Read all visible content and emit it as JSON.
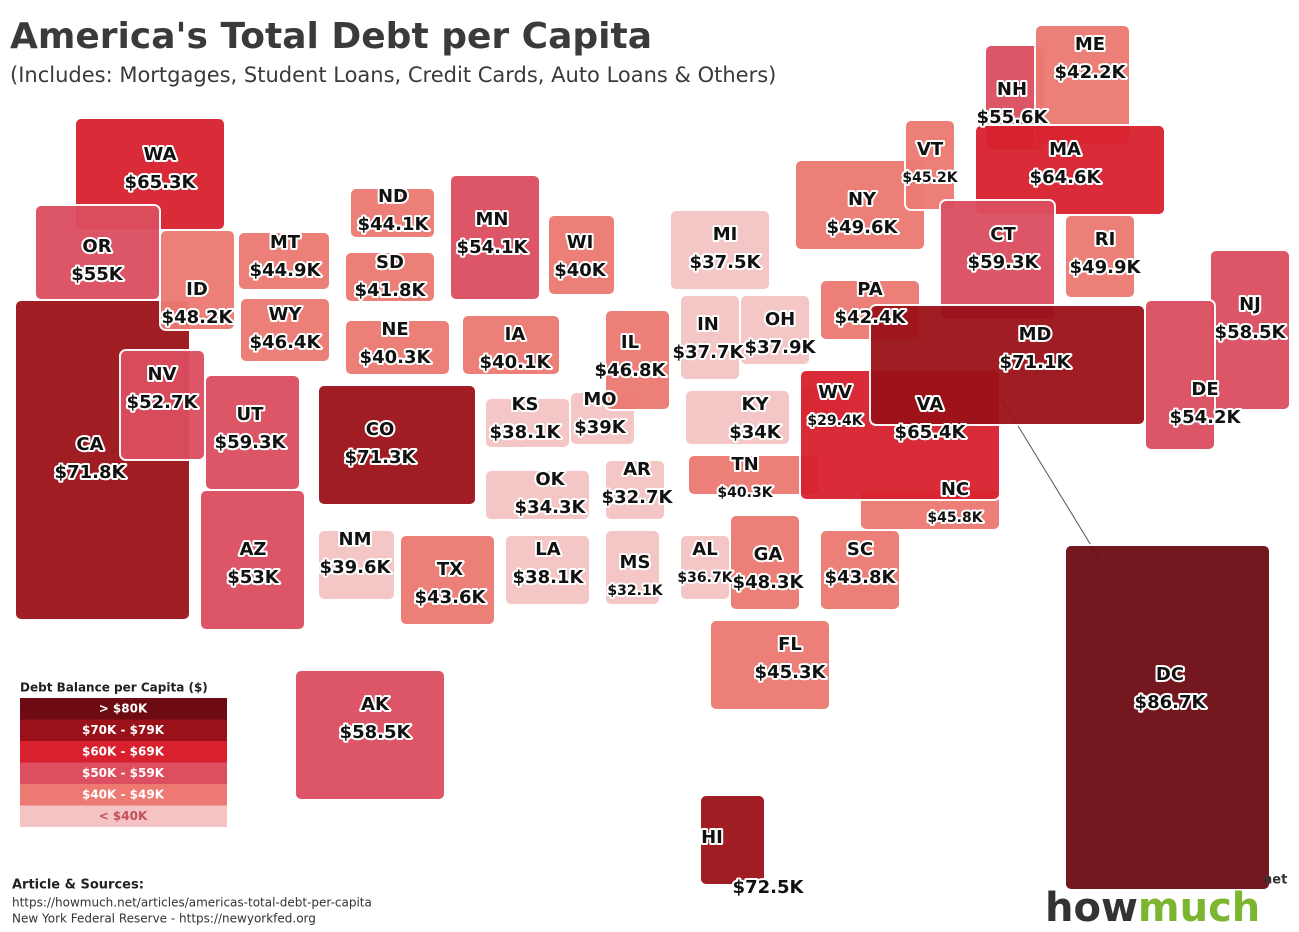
{
  "header": {
    "title": "America's Total Debt per Capita",
    "subtitle": "(Includes: Mortgages, Student Loans, Credit Cards, Auto Loans & Others)"
  },
  "states": [
    {
      "abbr": "WA",
      "label": "$65.3K",
      "color": "#d8202e"
    },
    {
      "abbr": "OR",
      "label": "$55K",
      "color": "#dc4e60"
    },
    {
      "abbr": "CA",
      "label": "$71.8K",
      "color": "#9b1119"
    },
    {
      "abbr": "ID",
      "label": "$48.2K",
      "color": "#ec7a72"
    },
    {
      "abbr": "NV",
      "label": "$52.7K",
      "color": "#dc4e60"
    },
    {
      "abbr": "UT",
      "label": "$59.3K",
      "color": "#dc4e60"
    },
    {
      "abbr": "AZ",
      "label": "$53K",
      "color": "#dc4e60"
    },
    {
      "abbr": "MT",
      "label": "$44.9K",
      "color": "#ec7a72"
    },
    {
      "abbr": "WY",
      "label": "$46.4K",
      "color": "#ec7a72"
    },
    {
      "abbr": "ND",
      "label": "$44.1K",
      "color": "#ec7a72"
    },
    {
      "abbr": "SD",
      "label": "$41.8K",
      "color": "#ec7a72"
    },
    {
      "abbr": "NE",
      "label": "$40.3K",
      "color": "#ec7a72"
    },
    {
      "abbr": "CO",
      "label": "$71.3K",
      "color": "#9b1119"
    },
    {
      "abbr": "MN",
      "label": "$54.1K",
      "color": "#dc4e60"
    },
    {
      "abbr": "WI",
      "label": "$40K",
      "color": "#ec7a72"
    },
    {
      "abbr": "IA",
      "label": "$40.1K",
      "color": "#ec7a72"
    },
    {
      "abbr": "KS",
      "label": "$38.1K",
      "color": "#f5c3c3"
    },
    {
      "abbr": "MO",
      "label": "$39K",
      "color": "#f5c3c3"
    },
    {
      "abbr": "OK",
      "label": "$34.3K",
      "color": "#f5c3c3"
    },
    {
      "abbr": "NM",
      "label": "$39.6K",
      "color": "#f5c3c3"
    },
    {
      "abbr": "TX",
      "label": "$43.6K",
      "color": "#ec7a72"
    },
    {
      "abbr": "AR",
      "label": "$32.7K",
      "color": "#f5c3c3"
    },
    {
      "abbr": "LA",
      "label": "$38.1K",
      "color": "#f5c3c3"
    },
    {
      "abbr": "MS",
      "label": "$32.1K",
      "color": "#f5c3c3"
    },
    {
      "abbr": "AL",
      "label": "$36.7K",
      "color": "#f5c3c3"
    },
    {
      "abbr": "GA",
      "label": "$48.3K",
      "color": "#ec7a72"
    },
    {
      "abbr": "FL",
      "label": "$45.3K",
      "color": "#ec7a72"
    },
    {
      "abbr": "SC",
      "label": "$43.8K",
      "color": "#ec7a72"
    },
    {
      "abbr": "NC",
      "label": "$45.8K",
      "color": "#ec7a72"
    },
    {
      "abbr": "TN",
      "label": "$40.3K",
      "color": "#ec7a72"
    },
    {
      "abbr": "KY",
      "label": "$34K",
      "color": "#f5c3c3"
    },
    {
      "abbr": "WV",
      "label": "$29.4K",
      "color": "#f5c3c3"
    },
    {
      "abbr": "VA",
      "label": "$65.4K",
      "color": "#d8202e"
    },
    {
      "abbr": "IL",
      "label": "$46.8K",
      "color": "#ec7a72"
    },
    {
      "abbr": "IN",
      "label": "$37.7K",
      "color": "#f5c3c3"
    },
    {
      "abbr": "OH",
      "label": "$37.9K",
      "color": "#f5c3c3"
    },
    {
      "abbr": "MI",
      "label": "$37.5K",
      "color": "#f5c3c3"
    },
    {
      "abbr": "PA",
      "label": "$42.4K",
      "color": "#ec7a72"
    },
    {
      "abbr": "NY",
      "label": "$49.6K",
      "color": "#ec7a72"
    },
    {
      "abbr": "VT",
      "label": "$45.2K",
      "color": "#ec7a72"
    },
    {
      "abbr": "NH",
      "label": "$55.6K",
      "color": "#dc4e60"
    },
    {
      "abbr": "ME",
      "label": "$42.2K",
      "color": "#ec7a72"
    },
    {
      "abbr": "MA",
      "label": "$64.6K",
      "color": "#d8202e"
    },
    {
      "abbr": "CT",
      "label": "$59.3K",
      "color": "#dc4e60"
    },
    {
      "abbr": "RI",
      "label": "$49.9K",
      "color": "#ec7a72"
    },
    {
      "abbr": "NJ",
      "label": "$58.5K",
      "color": "#dc4e60"
    },
    {
      "abbr": "DE",
      "label": "$54.2K",
      "color": "#dc4e60"
    },
    {
      "abbr": "MD",
      "label": "$71.1K",
      "color": "#9b1119"
    },
    {
      "abbr": "DC",
      "label": "$86.7K",
      "color": "#6e0b12"
    },
    {
      "abbr": "AK",
      "label": "$58.5K",
      "color": "#dc4e60"
    },
    {
      "abbr": "HI",
      "label": "$72.5K",
      "color": "#9b1119"
    }
  ],
  "legend": {
    "title": "Debt Balance per Capita ($)",
    "items": [
      {
        "label": "> $80K",
        "color": "#6e0b12"
      },
      {
        "label": "$70K - $79K",
        "color": "#9b1119"
      },
      {
        "label": "$60K - $69K",
        "color": "#d8202e"
      },
      {
        "label": "$50K - $59K",
        "color": "#dc4e60"
      },
      {
        "label": "$40K - $49K",
        "color": "#ec7a72"
      },
      {
        "label": "< $40K",
        "color": "#f5c3c3"
      }
    ]
  },
  "sources": {
    "heading": "Article & Sources:",
    "lines": [
      "https://howmuch.net/articles/americas-total-debt-per-capita",
      "New York Federal Reserve - https://newyorkfed.org"
    ]
  },
  "logo": {
    "how": "how",
    "much": "much",
    "net": "net"
  }
}
